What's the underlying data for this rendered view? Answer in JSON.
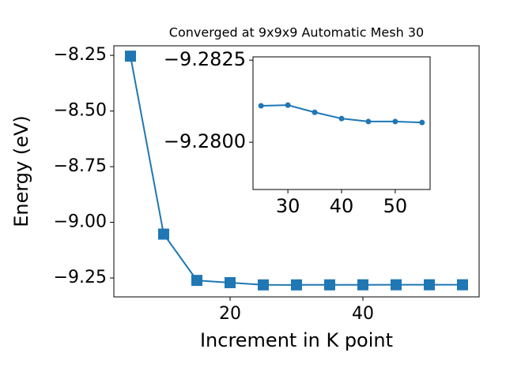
{
  "chart_data": [
    {
      "type": "line",
      "title": "Converged at 9x9x9 Automatic Mesh 30",
      "x_label": "Increment in K point",
      "y_label": "Energy (eV)",
      "x": [
        5,
        10,
        15,
        20,
        25,
        30,
        35,
        40,
        45,
        50,
        55
      ],
      "series": [
        {
          "color": "#1f77b4",
          "marker": "square",
          "values": [
            -8.2535,
            -9.053,
            -9.261,
            -9.271,
            -9.28111,
            -9.28113,
            -9.28091,
            -9.28072,
            -9.28063,
            -9.28063,
            -9.2806
          ]
        }
      ],
      "xlim": [
        2.5,
        57.5
      ],
      "xticks": [
        20,
        40
      ],
      "ylim": [
        -9.335,
        -8.207
      ],
      "yticks": [
        {
          "value": -9.25,
          "label": "−9.25"
        },
        {
          "value": -9.0,
          "label": "−9.00"
        },
        {
          "value": -8.75,
          "label": "−8.75"
        },
        {
          "value": -8.5,
          "label": "−8.50"
        },
        {
          "value": -8.25,
          "label": "−8.25"
        }
      ]
    },
    {
      "type": "line",
      "x": [
        25,
        30,
        35,
        40,
        45,
        50,
        55
      ],
      "series": [
        {
          "color": "#1f77b4",
          "marker": "circle",
          "values": [
            -9.28111,
            -9.28113,
            -9.28091,
            -9.28072,
            -9.28063,
            -9.28063,
            -9.2806
          ]
        }
      ],
      "xlim": [
        23.5,
        56.5
      ],
      "xticks": [
        30,
        40,
        50
      ],
      "ylim": [
        -9.27856,
        -9.2826
      ],
      "yticks": [
        {
          "value": -9.28,
          "label": "−9.2800"
        },
        {
          "value": -9.2825,
          "label": "−9.2825"
        }
      ]
    }
  ]
}
